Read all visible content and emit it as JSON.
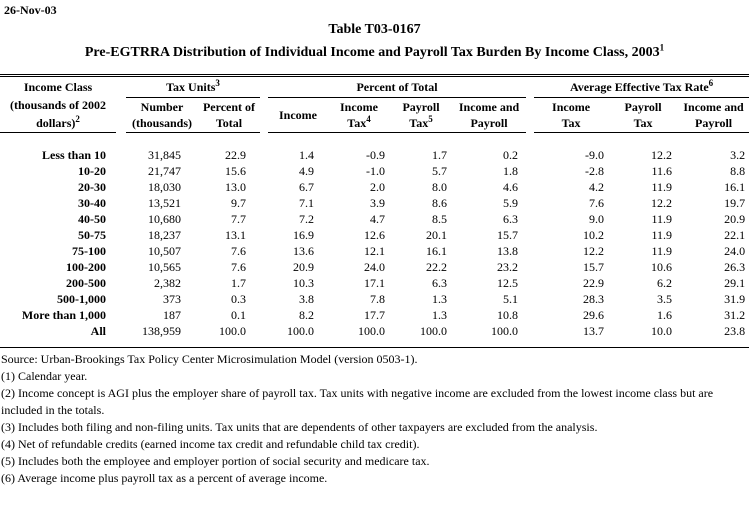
{
  "page": {
    "date": "26-Nov-03",
    "title": "Table T03-0167",
    "subtitle": "Pre-EGTRRA Distribution of Individual Income and Payroll Tax Burden By Income Class, 2003",
    "subtitle_sup": "1"
  },
  "table": {
    "stub_header": {
      "line1": "Income Class",
      "line2": "(thousands of 2002",
      "line3": "dollars)",
      "line3_sup": "2"
    },
    "groups": [
      {
        "label": "Tax Units",
        "sup": "3"
      },
      {
        "label": "Percent of Total",
        "sup": ""
      },
      {
        "label": "Average Effective Tax Rate",
        "sup": "6"
      }
    ],
    "columns": [
      {
        "line1": "Number",
        "line2": "(thousands)",
        "sup": ""
      },
      {
        "line1": "Percent of",
        "line2": "Total",
        "sup": ""
      },
      {
        "line1": "Income",
        "line2": "",
        "sup": ""
      },
      {
        "line1": "Income",
        "line2": "Tax",
        "sup": "4"
      },
      {
        "line1": "Payroll",
        "line2": "Tax",
        "sup": "5"
      },
      {
        "line1": "Income and",
        "line2": "Payroll",
        "sup": ""
      },
      {
        "line1": "Income",
        "line2": "Tax",
        "sup": ""
      },
      {
        "line1": "Payroll",
        "line2": "Tax",
        "sup": ""
      },
      {
        "line1": "Income and",
        "line2": "Payroll",
        "sup": ""
      }
    ],
    "rows": [
      {
        "label": "Less than 10",
        "values": [
          "31,845",
          "22.9",
          "1.4",
          "-0.9",
          "1.7",
          "0.2",
          "-9.0",
          "12.2",
          "3.2"
        ]
      },
      {
        "label": "10-20",
        "values": [
          "21,747",
          "15.6",
          "4.9",
          "-1.0",
          "5.7",
          "1.8",
          "-2.8",
          "11.6",
          "8.8"
        ]
      },
      {
        "label": "20-30",
        "values": [
          "18,030",
          "13.0",
          "6.7",
          "2.0",
          "8.0",
          "4.6",
          "4.2",
          "11.9",
          "16.1"
        ]
      },
      {
        "label": "30-40",
        "values": [
          "13,521",
          "9.7",
          "7.1",
          "3.9",
          "8.6",
          "5.9",
          "7.6",
          "12.2",
          "19.7"
        ]
      },
      {
        "label": "40-50",
        "values": [
          "10,680",
          "7.7",
          "7.2",
          "4.7",
          "8.5",
          "6.3",
          "9.0",
          "11.9",
          "20.9"
        ]
      },
      {
        "label": "50-75",
        "values": [
          "18,237",
          "13.1",
          "16.9",
          "12.6",
          "20.1",
          "15.7",
          "10.2",
          "11.9",
          "22.1"
        ]
      },
      {
        "label": "75-100",
        "values": [
          "10,507",
          "7.6",
          "13.6",
          "12.1",
          "16.1",
          "13.8",
          "12.2",
          "11.9",
          "24.0"
        ]
      },
      {
        "label": "100-200",
        "values": [
          "10,565",
          "7.6",
          "20.9",
          "24.0",
          "22.2",
          "23.2",
          "15.7",
          "10.6",
          "26.3"
        ]
      },
      {
        "label": "200-500",
        "values": [
          "2,382",
          "1.7",
          "10.3",
          "17.1",
          "6.3",
          "12.5",
          "22.9",
          "6.2",
          "29.1"
        ]
      },
      {
        "label": "500-1,000",
        "values": [
          "373",
          "0.3",
          "3.8",
          "7.8",
          "1.3",
          "5.1",
          "28.3",
          "3.5",
          "31.9"
        ]
      },
      {
        "label": "More than 1,000",
        "values": [
          "187",
          "0.1",
          "8.2",
          "17.7",
          "1.3",
          "10.8",
          "29.6",
          "1.6",
          "31.2"
        ]
      },
      {
        "label": "All",
        "values": [
          "138,959",
          "100.0",
          "100.0",
          "100.0",
          "100.0",
          "100.0",
          "13.7",
          "10.0",
          "23.8"
        ]
      }
    ]
  },
  "footnotes": [
    "Source: Urban-Brookings Tax Policy Center Microsimulation Model (version 0503-1).",
    "(1) Calendar year.",
    "(2) Income concept is AGI plus the employer share of payroll tax.  Tax units with negative income are excluded from the lowest income class but are included in the totals.",
    "(3) Includes both filing and non-filing units.  Tax units that are dependents of other taxpayers are excluded from the analysis.",
    "(4) Net of refundable credits (earned income tax credit and refundable child tax credit).",
    "(5) Includes both the employee and employer portion of social security and medicare tax.",
    "(6) Average income plus payroll tax as a percent of average income."
  ]
}
